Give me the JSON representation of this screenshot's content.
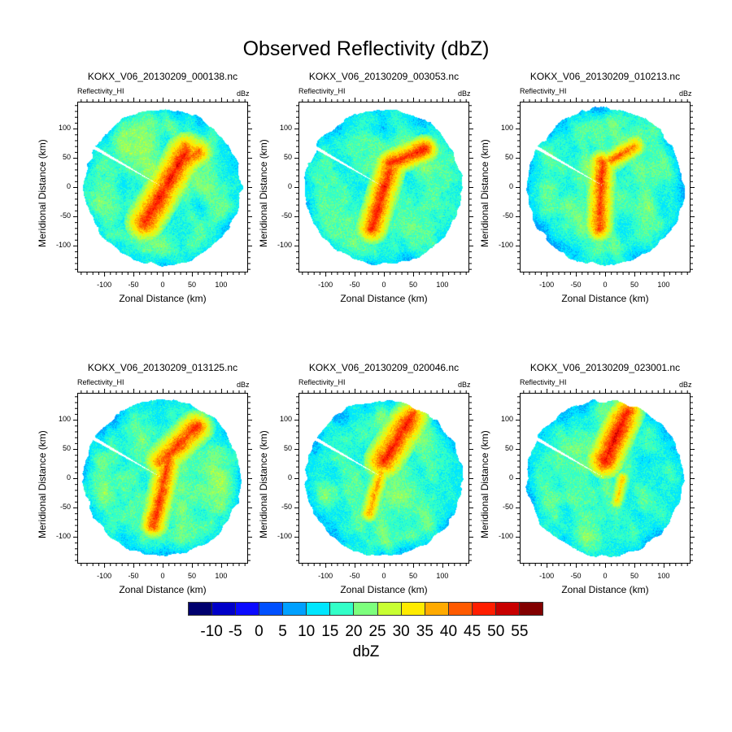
{
  "title": "Observed Reflectivity (dbZ)",
  "chart_data": {
    "type": "heatmap",
    "title": "Observed Reflectivity (dbZ)",
    "panels": [
      {
        "title": "KOKX_V06_20130209_000138.nc",
        "left_subtitle": "Reflectivity_HI",
        "right_subtitle": "dBz"
      },
      {
        "title": "KOKX_V06_20130209_003053.nc",
        "left_subtitle": "Reflectivity_HI",
        "right_subtitle": "dBz"
      },
      {
        "title": "KOKX_V06_20130209_010213.nc",
        "left_subtitle": "Reflectivity_HI",
        "right_subtitle": "dBz"
      },
      {
        "title": "KOKX_V06_20130209_013125.nc",
        "left_subtitle": "Reflectivity_HI",
        "right_subtitle": "dBz"
      },
      {
        "title": "KOKX_V06_20130209_020046.nc",
        "left_subtitle": "Reflectivity_HI",
        "right_subtitle": "dBz"
      },
      {
        "title": "KOKX_V06_20130209_023001.nc",
        "left_subtitle": "Reflectivity_HI",
        "right_subtitle": "dBz"
      }
    ],
    "xlabel": "Zonal Distance (km)",
    "ylabel": "Meridional Distance (km)",
    "xlim": [
      -146,
      146
    ],
    "ylim": [
      -146,
      146
    ],
    "xticks": [
      "-100",
      "-50",
      "0",
      "50",
      "100"
    ],
    "yticks": [
      "100",
      "50",
      "0",
      "-50",
      "-100"
    ],
    "xtick_values": [
      -100,
      -50,
      0,
      50,
      100
    ],
    "ytick_values": [
      100,
      50,
      0,
      -50,
      -100
    ],
    "minor_tick_step": 10,
    "radar_range_km": 140,
    "colorbar": {
      "title": "dbZ",
      "levels": [
        "-10",
        "-5",
        "0",
        "5",
        "10",
        "15",
        "20",
        "25",
        "30",
        "35",
        "40",
        "45",
        "50",
        "55"
      ],
      "level_values": [
        -10,
        -5,
        0,
        5,
        10,
        15,
        20,
        25,
        30,
        35,
        40,
        45,
        50,
        55
      ],
      "colors": [
        "#00006e",
        "#0000c8",
        "#0a0aff",
        "#0050ff",
        "#00a0ff",
        "#00e6ff",
        "#32ffc8",
        "#7dff7d",
        "#c8ff32",
        "#ffeb00",
        "#ffaa00",
        "#ff5a00",
        "#ff1e00",
        "#c80000",
        "#820000"
      ]
    }
  }
}
